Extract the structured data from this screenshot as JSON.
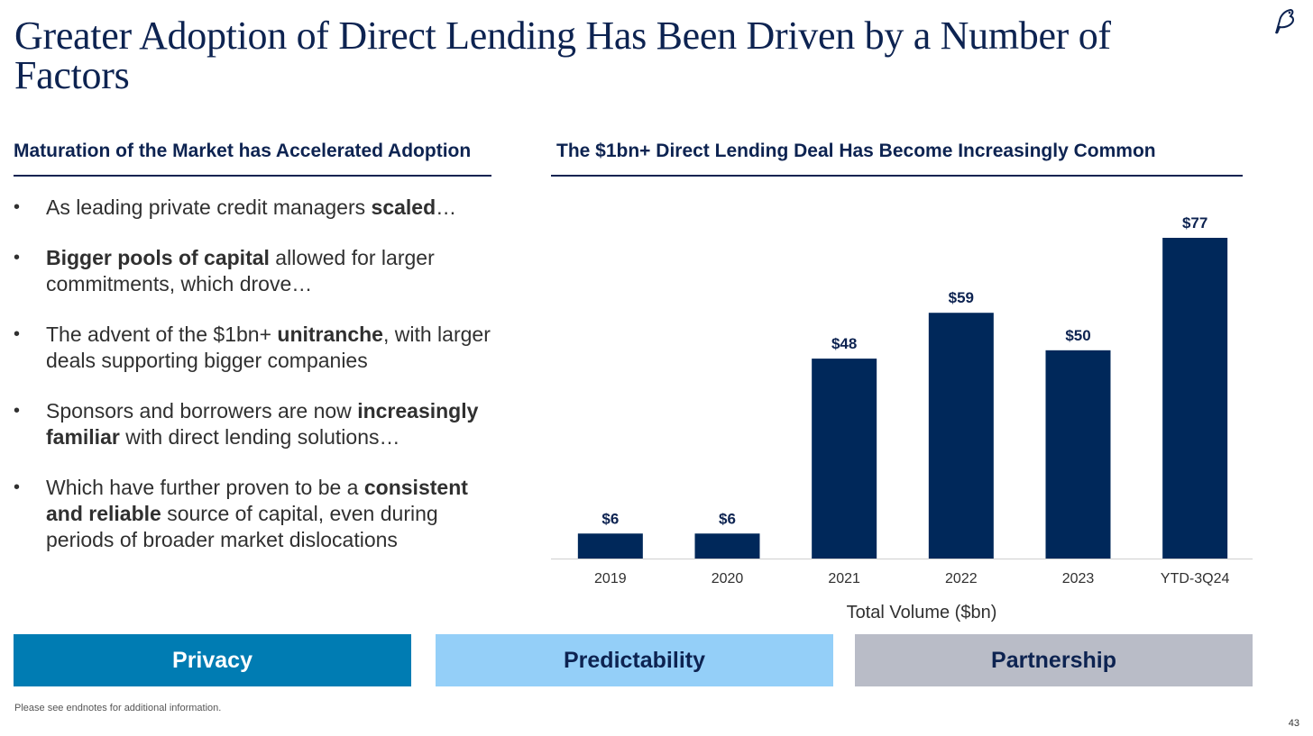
{
  "title": "Greater Adoption of Direct Lending Has Been Driven by a Number of Factors",
  "left_panel": {
    "heading": "Maturation of the Market has Accelerated Adoption",
    "bullets": [
      {
        "parts": [
          {
            "text": "As leading private credit managers ",
            "bold": false
          },
          {
            "text": "scaled",
            "bold": true
          },
          {
            "text": "…",
            "bold": false
          }
        ]
      },
      {
        "parts": [
          {
            "text": "Bigger pools of capital",
            "bold": true
          },
          {
            "text": " allowed for larger commitments, which drove…",
            "bold": false
          }
        ]
      },
      {
        "parts": [
          {
            "text": "The advent of the $1bn+ ",
            "bold": false
          },
          {
            "text": "unitranche",
            "bold": true
          },
          {
            "text": ", with larger deals supporting bigger companies",
            "bold": false
          }
        ]
      },
      {
        "parts": [
          {
            "text": "Sponsors and borrowers are now ",
            "bold": false
          },
          {
            "text": "increasingly familiar",
            "bold": true
          },
          {
            "text": " with direct lending solutions…",
            "bold": false
          }
        ]
      },
      {
        "parts": [
          {
            "text": "Which have further proven to be a ",
            "bold": false
          },
          {
            "text": "consistent and reliable",
            "bold": true
          },
          {
            "text": " source of capital, even during periods of broader market dislocations",
            "bold": false
          }
        ]
      }
    ]
  },
  "right_panel": {
    "heading": "The $1bn+ Direct Lending Deal Has Become Increasingly Common"
  },
  "chart_data": {
    "type": "bar",
    "categories": [
      "2019",
      "2020",
      "2021",
      "2022",
      "2023",
      "YTD-3Q24"
    ],
    "values": [
      6,
      6,
      48,
      59,
      50,
      77
    ],
    "data_labels": [
      "$6",
      "$6",
      "$48",
      "$59",
      "$50",
      "$77"
    ],
    "title": "The $1bn+ Direct Lending Deal Has Become Increasingly Common",
    "xlabel": "Total Volume ($bn)",
    "ylabel": "",
    "ylim": [
      0,
      80
    ],
    "grid": false,
    "legend": "none",
    "bar_color": "#00285a"
  },
  "pillars": [
    "Privacy",
    "Predictability",
    "Partnership"
  ],
  "footnote": "Please see endnotes for additional information.",
  "page_number": "43",
  "colors": {
    "navy": "#0d2351",
    "bar": "#00285a",
    "privacy": "#007cb3",
    "predictability": "#94cff8",
    "partnership": "#b9bcc7"
  }
}
